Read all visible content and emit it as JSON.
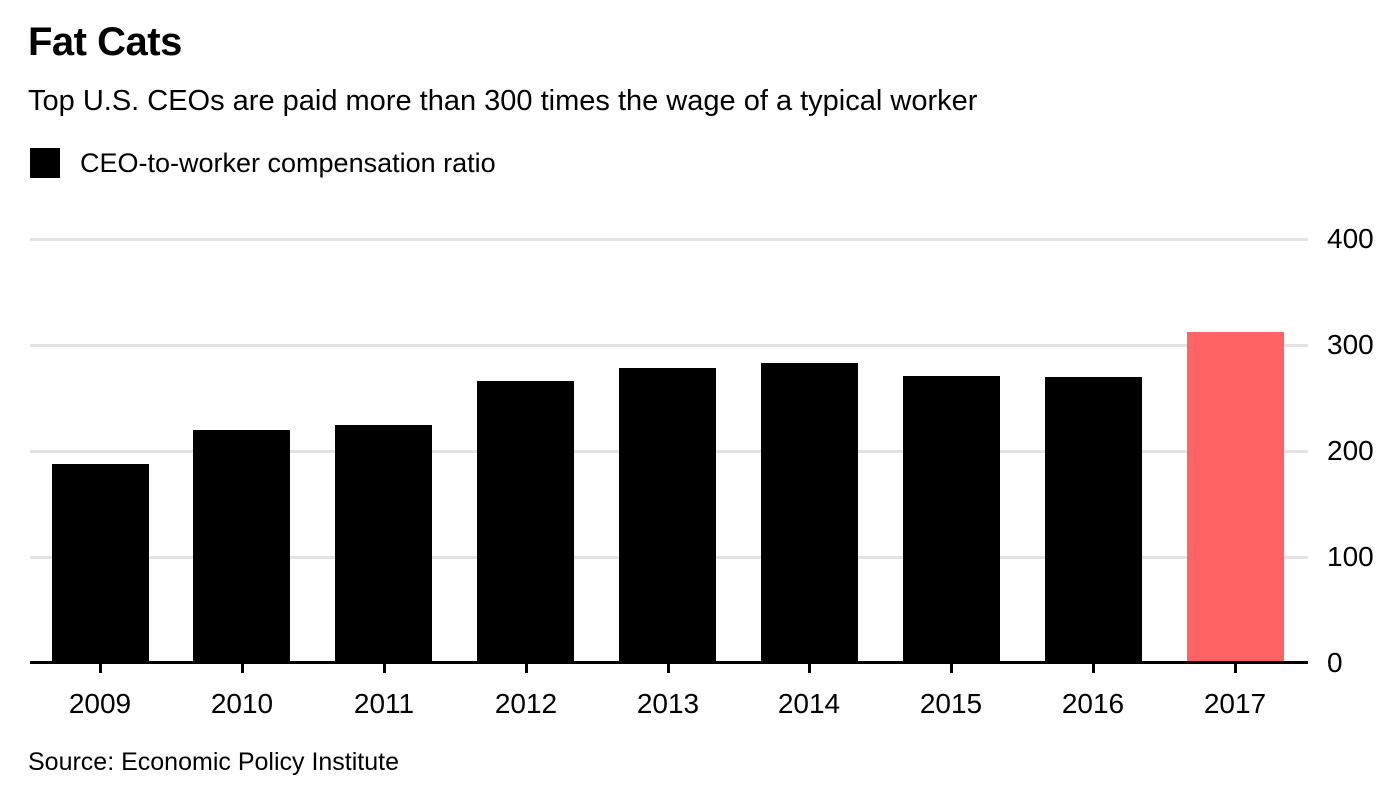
{
  "header": {
    "title": "Fat Cats",
    "subtitle": "Top U.S. CEOs are paid more than 300 times the wage of a typical worker"
  },
  "legend": {
    "label": "CEO-to-worker compensation ratio",
    "swatch_color": "#000000"
  },
  "source": "Source: Economic Policy Institute",
  "chart_data": {
    "type": "bar",
    "title": "Fat Cats",
    "subtitle": "Top U.S. CEOs are paid more than 300 times the wage of a typical worker",
    "series_name": "CEO-to-worker compensation ratio",
    "categories": [
      "2009",
      "2010",
      "2011",
      "2012",
      "2013",
      "2014",
      "2015",
      "2016",
      "2017"
    ],
    "values": [
      188,
      220,
      225,
      266,
      278,
      283,
      271,
      270,
      312
    ],
    "xlabel": "",
    "ylabel": "",
    "ylim": [
      0,
      400
    ],
    "yticks": [
      0,
      100,
      200,
      300,
      400
    ],
    "y_axis_side": "right",
    "grid": true,
    "legend_position": "top-left",
    "bar_color": "#000000",
    "highlight_index": 8,
    "highlight_color": "#ff6364",
    "gridline_color": "#e3e3e3",
    "axis_color": "#000000"
  }
}
